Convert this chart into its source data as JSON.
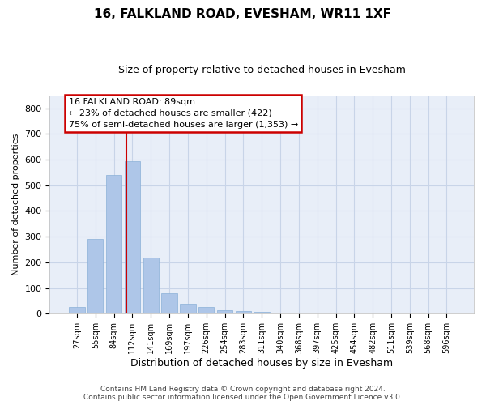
{
  "title1": "16, FALKLAND ROAD, EVESHAM, WR11 1XF",
  "title2": "Size of property relative to detached houses in Evesham",
  "xlabel": "Distribution of detached houses by size in Evesham",
  "ylabel": "Number of detached properties",
  "footnote": "Contains HM Land Registry data © Crown copyright and database right 2024.\nContains public sector information licensed under the Open Government Licence v3.0.",
  "bin_labels": [
    "27sqm",
    "55sqm",
    "84sqm",
    "112sqm",
    "141sqm",
    "169sqm",
    "197sqm",
    "226sqm",
    "254sqm",
    "283sqm",
    "311sqm",
    "340sqm",
    "368sqm",
    "397sqm",
    "425sqm",
    "454sqm",
    "482sqm",
    "511sqm",
    "539sqm",
    "568sqm",
    "596sqm"
  ],
  "bar_heights": [
    25,
    290,
    540,
    595,
    220,
    80,
    38,
    25,
    15,
    10,
    7,
    5,
    0,
    0,
    0,
    0,
    0,
    0,
    0,
    0,
    0
  ],
  "bar_color": "#aec6e8",
  "bar_edge_color": "#8ab0d8",
  "grid_color": "#c8d4e8",
  "background_color": "#e8eef8",
  "red_line_x": 2.68,
  "annotation_text": "16 FALKLAND ROAD: 89sqm\n← 23% of detached houses are smaller (422)\n75% of semi-detached houses are larger (1,353) →",
  "annotation_box_color": "#ffffff",
  "annotation_border_color": "#cc0000",
  "ylim": [
    0,
    850
  ],
  "yticks": [
    0,
    100,
    200,
    300,
    400,
    500,
    600,
    700,
    800
  ],
  "title1_fontsize": 11,
  "title2_fontsize": 9,
  "xlabel_fontsize": 9,
  "ylabel_fontsize": 8,
  "footnote_fontsize": 6.5
}
